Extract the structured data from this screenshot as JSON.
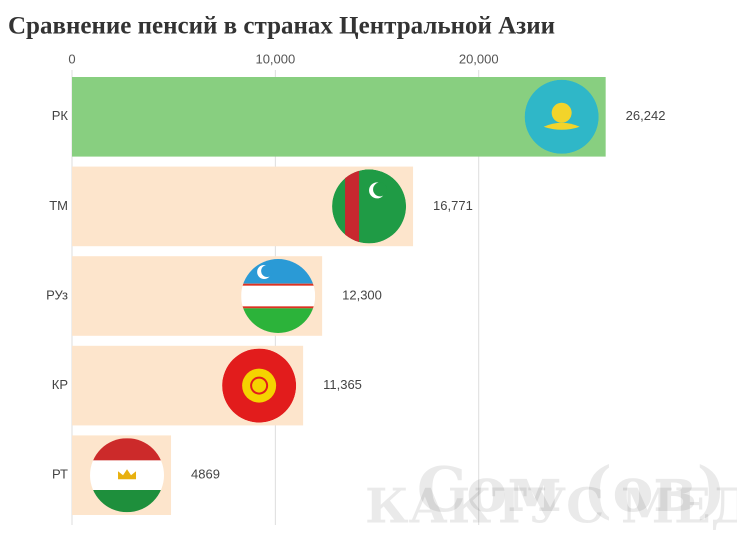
{
  "chart_data": {
    "type": "bar",
    "orientation": "horizontal",
    "title": "Сравнение пенсий в странах Центральной Азии",
    "categories": [
      "РК",
      "ТМ",
      "РУз",
      "КР",
      "РТ"
    ],
    "values": [
      26242,
      16771,
      12300,
      11365,
      4869
    ],
    "value_labels": [
      "26,242",
      "16,771",
      "12,300",
      "11,365",
      "4869"
    ],
    "colors": [
      "#88cf80",
      "#fde5cc",
      "#fde5cc",
      "#fde5cc",
      "#fde5cc"
    ],
    "xlim": [
      0,
      32700
    ],
    "xticks": [
      0,
      {
        "value": 10000,
        "label": "10,000"
      },
      {
        "value": 20000,
        "label": "20,000"
      }
    ],
    "grid": true,
    "watermarks": [
      "КАКТУС МЕДИА",
      "Сом (ов)"
    ]
  }
}
